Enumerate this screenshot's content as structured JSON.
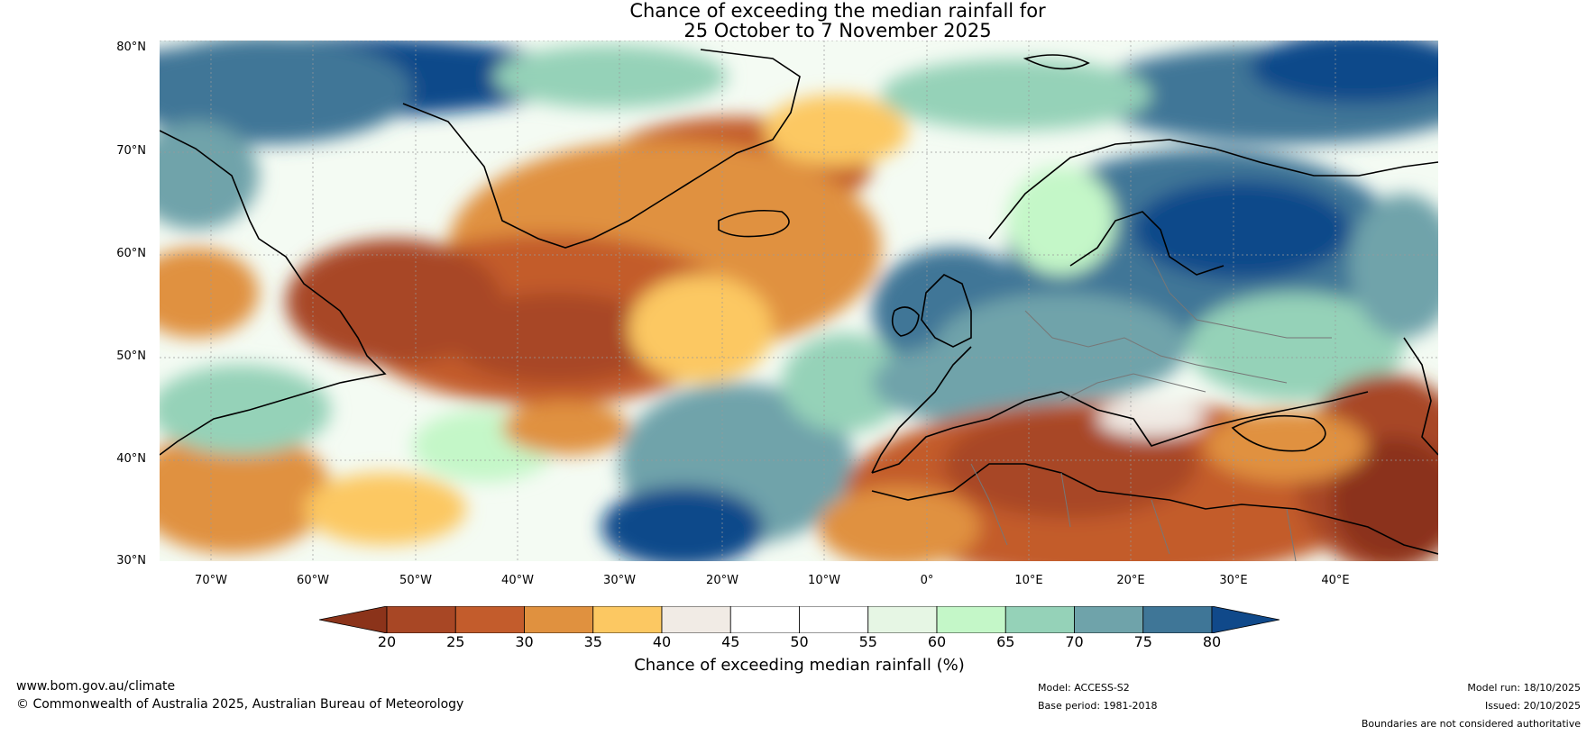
{
  "title_line1": "Chance of exceeding the median rainfall for",
  "title_line2": "25 October to 7 November 2025",
  "lat_labels": [
    "80°N",
    "70°N",
    "60°N",
    "50°N",
    "40°N",
    "30°N"
  ],
  "lon_labels": [
    "70°W",
    "60°W",
    "50°W",
    "40°W",
    "30°W",
    "20°W",
    "10°W",
    "0°",
    "10°E",
    "20°E",
    "30°E",
    "40°E"
  ],
  "colorbar": {
    "ticks": [
      "20",
      "25",
      "30",
      "35",
      "40",
      "45",
      "50",
      "55",
      "60",
      "65",
      "70",
      "75",
      "80"
    ],
    "colors": [
      "#8b331a",
      "#a84725",
      "#c35c2c",
      "#e0913f",
      "#fcc862",
      "#f1ebe5",
      "#ffffff",
      "#ffffff",
      "#e6f6e4",
      "#c4f7c8",
      "#95d2b8",
      "#6fa3aa",
      "#3f7697",
      "#10498a"
    ],
    "label": "Chance of exceeding median rainfall (%)"
  },
  "footer": {
    "website": "www.bom.gov.au/climate",
    "copyright": "© Commonwealth of Australia 2025, Australian Bureau of Meteorology",
    "model": "Model: ACCESS-S2",
    "base_period": "Base period: 1981-2018",
    "model_run": "Model run: 18/10/2025",
    "issued": "Issued: 20/10/2025",
    "disclaimer": "Boundaries are not considered authoritative"
  }
}
